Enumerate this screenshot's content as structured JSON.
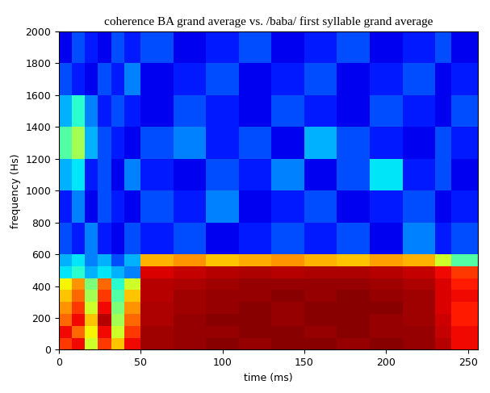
{
  "chart_data": {
    "type": "heatmap",
    "title": "coherence BA grand average vs. /baba/ first syllable grand average",
    "x_label": "time (ms)",
    "y_label": "frequency (Hs)",
    "xlim": [
      0,
      256
    ],
    "xticks": [
      0,
      50,
      100,
      150,
      200,
      250
    ],
    "ylim": [
      0,
      2000
    ],
    "yticks": [
      0,
      200,
      400,
      600,
      800,
      1000,
      1200,
      1400,
      1600,
      1800,
      2000
    ],
    "color": "jet",
    "color_range": [
      0,
      1
    ],
    "x_edges": [
      0,
      8,
      16,
      24,
      32,
      40,
      50,
      70,
      90,
      110,
      130,
      150,
      170,
      190,
      210,
      230,
      240,
      256
    ],
    "y_edges": [
      0,
      75,
      150,
      225,
      300,
      375,
      450,
      525,
      600,
      800,
      1000,
      1200,
      1400,
      1600,
      1800,
      2000
    ],
    "cells": [
      [
        0.85,
        0.9,
        0.6,
        0.85,
        0.7,
        0.9,
        0.97,
        0.98,
        0.99,
        0.98,
        0.99,
        0.99,
        0.98,
        0.99,
        0.98,
        0.95,
        0.9
      ],
      [
        0.9,
        0.8,
        0.65,
        0.9,
        0.6,
        0.85,
        0.97,
        0.98,
        0.98,
        0.99,
        0.99,
        0.98,
        0.99,
        0.98,
        0.98,
        0.94,
        0.9
      ],
      [
        0.8,
        0.9,
        0.7,
        0.95,
        0.55,
        0.8,
        0.96,
        0.98,
        0.99,
        0.99,
        0.98,
        0.99,
        0.99,
        0.98,
        0.97,
        0.93,
        0.88
      ],
      [
        0.75,
        0.85,
        0.6,
        0.9,
        0.5,
        0.75,
        0.96,
        0.97,
        0.98,
        0.99,
        0.98,
        0.99,
        0.99,
        0.99,
        0.97,
        0.92,
        0.88
      ],
      [
        0.7,
        0.8,
        0.55,
        0.85,
        0.45,
        0.7,
        0.95,
        0.97,
        0.98,
        0.98,
        0.99,
        0.98,
        0.99,
        0.98,
        0.97,
        0.92,
        0.9
      ],
      [
        0.65,
        0.75,
        0.5,
        0.8,
        0.4,
        0.6,
        0.95,
        0.96,
        0.97,
        0.98,
        0.98,
        0.98,
        0.98,
        0.97,
        0.96,
        0.92,
        0.88
      ],
      [
        0.35,
        0.4,
        0.3,
        0.35,
        0.3,
        0.25,
        0.92,
        0.94,
        0.95,
        0.96,
        0.95,
        0.96,
        0.96,
        0.95,
        0.94,
        0.9,
        0.85
      ],
      [
        0.3,
        0.35,
        0.25,
        0.3,
        0.2,
        0.3,
        0.72,
        0.75,
        0.7,
        0.73,
        0.75,
        0.72,
        0.7,
        0.74,
        0.72,
        0.6,
        0.45
      ],
      [
        0.2,
        0.15,
        0.25,
        0.15,
        0.1,
        0.2,
        0.15,
        0.2,
        0.1,
        0.15,
        0.2,
        0.15,
        0.2,
        0.1,
        0.25,
        0.15,
        0.2
      ],
      [
        0.15,
        0.25,
        0.1,
        0.2,
        0.15,
        0.1,
        0.2,
        0.15,
        0.25,
        0.1,
        0.15,
        0.2,
        0.1,
        0.15,
        0.2,
        0.1,
        0.15
      ],
      [
        0.3,
        0.35,
        0.15,
        0.2,
        0.1,
        0.25,
        0.15,
        0.1,
        0.2,
        0.15,
        0.25,
        0.1,
        0.2,
        0.35,
        0.15,
        0.2,
        0.1
      ],
      [
        0.45,
        0.55,
        0.3,
        0.2,
        0.15,
        0.1,
        0.2,
        0.25,
        0.15,
        0.2,
        0.1,
        0.3,
        0.2,
        0.15,
        0.1,
        0.2,
        0.15
      ],
      [
        0.3,
        0.4,
        0.25,
        0.15,
        0.2,
        0.15,
        0.1,
        0.2,
        0.15,
        0.1,
        0.2,
        0.15,
        0.1,
        0.2,
        0.15,
        0.1,
        0.2
      ],
      [
        0.2,
        0.15,
        0.1,
        0.2,
        0.15,
        0.25,
        0.1,
        0.15,
        0.2,
        0.1,
        0.15,
        0.2,
        0.1,
        0.15,
        0.2,
        0.1,
        0.15
      ],
      [
        0.1,
        0.2,
        0.15,
        0.1,
        0.2,
        0.15,
        0.2,
        0.1,
        0.15,
        0.2,
        0.1,
        0.15,
        0.2,
        0.1,
        0.15,
        0.2,
        0.1
      ]
    ]
  }
}
